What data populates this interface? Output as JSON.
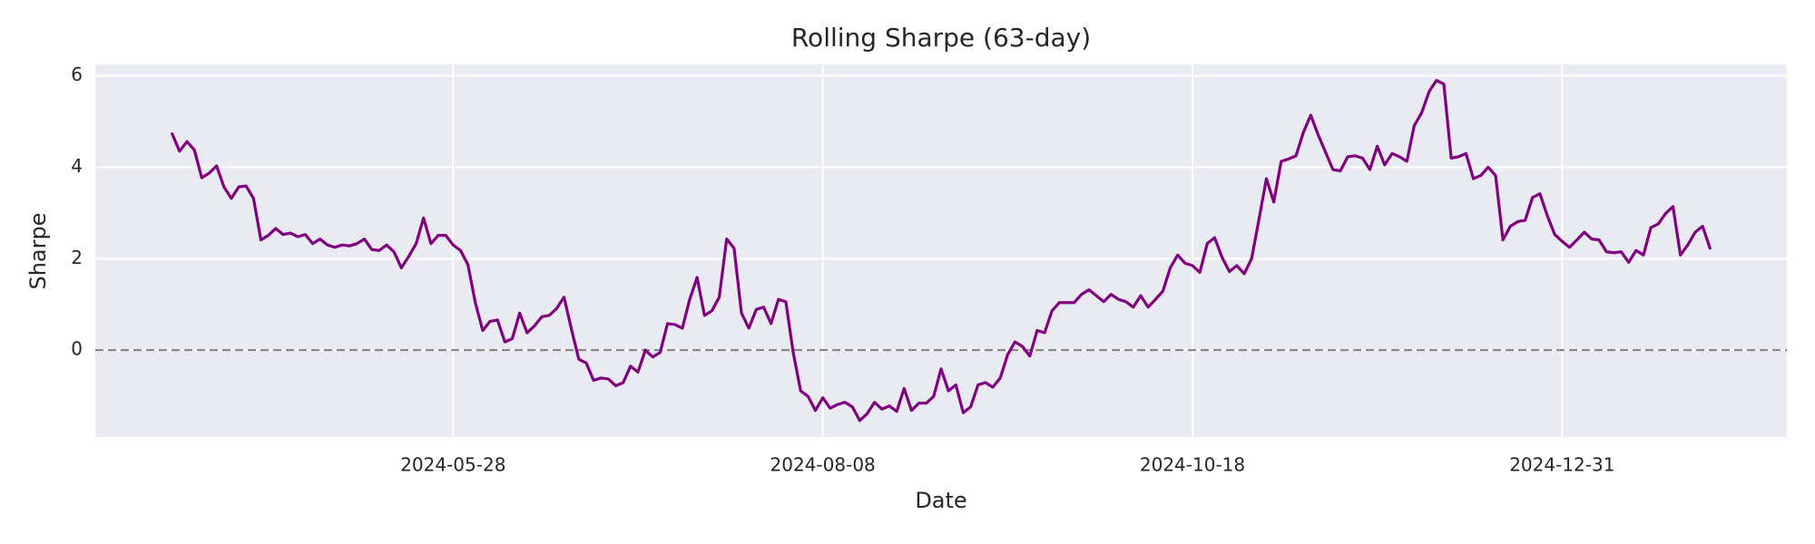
{
  "chart_data": {
    "type": "line",
    "title": "Rolling Sharpe (63-day)",
    "x_label": "Date",
    "y_label": "Sharpe",
    "categories": [
      null,
      null,
      null,
      null,
      null,
      null,
      null,
      null,
      null,
      null,
      null,
      null,
      null,
      null,
      null,
      null,
      null,
      null,
      null,
      null,
      null,
      null,
      null,
      null,
      null,
      null,
      null,
      null,
      null,
      null,
      null,
      null,
      null,
      null,
      null,
      null,
      null,
      null,
      "2024-05-28",
      null,
      null,
      null,
      null,
      null,
      null,
      null,
      null,
      null,
      null,
      null,
      null,
      null,
      null,
      null,
      null,
      null,
      null,
      null,
      null,
      null,
      null,
      null,
      null,
      null,
      null,
      null,
      null,
      null,
      null,
      null,
      null,
      null,
      null,
      null,
      null,
      null,
      null,
      null,
      null,
      null,
      null,
      null,
      null,
      null,
      null,
      null,
      null,
      null,
      "2024-08-08",
      null,
      null,
      null,
      null,
      null,
      null,
      null,
      null,
      null,
      null,
      null,
      null,
      null,
      null,
      null,
      null,
      null,
      null,
      null,
      null,
      null,
      null,
      null,
      null,
      null,
      null,
      null,
      null,
      null,
      null,
      null,
      null,
      null,
      null,
      null,
      null,
      null,
      null,
      null,
      null,
      null,
      null,
      null,
      null,
      null,
      null,
      null,
      null,
      null,
      "2024-10-18",
      null,
      null,
      null,
      null,
      null,
      null,
      null,
      null,
      null,
      null,
      null,
      null,
      null,
      null,
      null,
      null,
      null,
      null,
      null,
      null,
      null,
      null,
      null,
      null,
      null,
      null,
      null,
      null,
      null,
      null,
      null,
      null,
      null,
      null,
      null,
      null,
      null,
      null,
      null,
      null,
      null,
      null,
      null,
      null,
      null,
      null,
      null,
      null,
      null,
      "2024-12-31",
      null,
      null,
      null,
      null,
      null,
      null,
      null,
      null,
      null,
      null,
      null,
      null,
      null,
      null,
      null,
      null,
      null,
      null,
      null,
      null
    ],
    "values": [
      4.73,
      4.35,
      4.56,
      4.38,
      3.77,
      3.87,
      4.03,
      3.57,
      3.32,
      3.57,
      3.59,
      3.32,
      2.41,
      2.51,
      2.66,
      2.53,
      2.56,
      2.48,
      2.53,
      2.33,
      2.43,
      2.3,
      2.25,
      2.3,
      2.28,
      2.33,
      2.43,
      2.2,
      2.18,
      2.3,
      2.15,
      1.8,
      2.05,
      2.33,
      2.89,
      2.33,
      2.51,
      2.51,
      2.3,
      2.18,
      1.87,
      1.04,
      0.43,
      0.63,
      0.66,
      0.18,
      0.25,
      0.81,
      0.38,
      0.53,
      0.73,
      0.76,
      0.91,
      1.16,
      0.46,
      -0.2,
      -0.28,
      -0.66,
      -0.61,
      -0.63,
      -0.78,
      -0.71,
      -0.35,
      -0.48,
      0,
      -0.15,
      -0.05,
      0.58,
      0.56,
      0.48,
      1.11,
      1.59,
      0.76,
      0.86,
      1.16,
      2.43,
      2.23,
      0.81,
      0.48,
      0.89,
      0.94,
      0.58,
      1.11,
      1.06,
      -0.05,
      -0.89,
      -1.01,
      -1.32,
      -1.04,
      -1.27,
      -1.19,
      -1.14,
      -1.24,
      -1.54,
      -1.39,
      -1.14,
      -1.29,
      -1.22,
      -1.34,
      -0.84,
      -1.32,
      -1.16,
      -1.16,
      -1.01,
      -0.41,
      -0.89,
      -0.76,
      -1.37,
      -1.24,
      -0.76,
      -0.71,
      -0.81,
      -0.61,
      -0.1,
      0.18,
      0.08,
      -0.13,
      0.43,
      0.38,
      0.86,
      1.04,
      1.04,
      1.04,
      1.22,
      1.32,
      1.19,
      1.06,
      1.22,
      1.11,
      1.06,
      0.94,
      1.19,
      0.94,
      1.11,
      1.29,
      1.8,
      2.08,
      1.9,
      1.85,
      1.7,
      2.33,
      2.46,
      2.03,
      1.72,
      1.85,
      1.67,
      2.0,
      2.86,
      3.75,
      3.24,
      4.13,
      4.18,
      4.25,
      4.76,
      5.14,
      4.71,
      4.33,
      3.95,
      3.92,
      4.23,
      4.25,
      4.2,
      3.95,
      4.46,
      4.05,
      4.3,
      4.23,
      4.13,
      4.91,
      5.19,
      5.65,
      5.9,
      5.82,
      4.2,
      4.23,
      4.3,
      3.75,
      3.82,
      4.0,
      3.82,
      2.41,
      2.71,
      2.81,
      2.84,
      3.34,
      3.42,
      2.94,
      2.53,
      2.38,
      2.25,
      2.41,
      2.58,
      2.43,
      2.41,
      2.15,
      2.13,
      2.15,
      1.92,
      2.18,
      2.08,
      2.68,
      2.76,
      2.99,
      3.14,
      2.08,
      2.3,
      2.58,
      2.71,
      2.23
    ],
    "color": "#800080",
    "ylim": [
      -1.9,
      6.25
    ],
    "yticks": [
      0,
      2,
      4,
      6
    ],
    "hline": {
      "y": 0,
      "color": "#808080",
      "style": "dashed"
    },
    "grid": true,
    "background": "#eaeaf2"
  }
}
